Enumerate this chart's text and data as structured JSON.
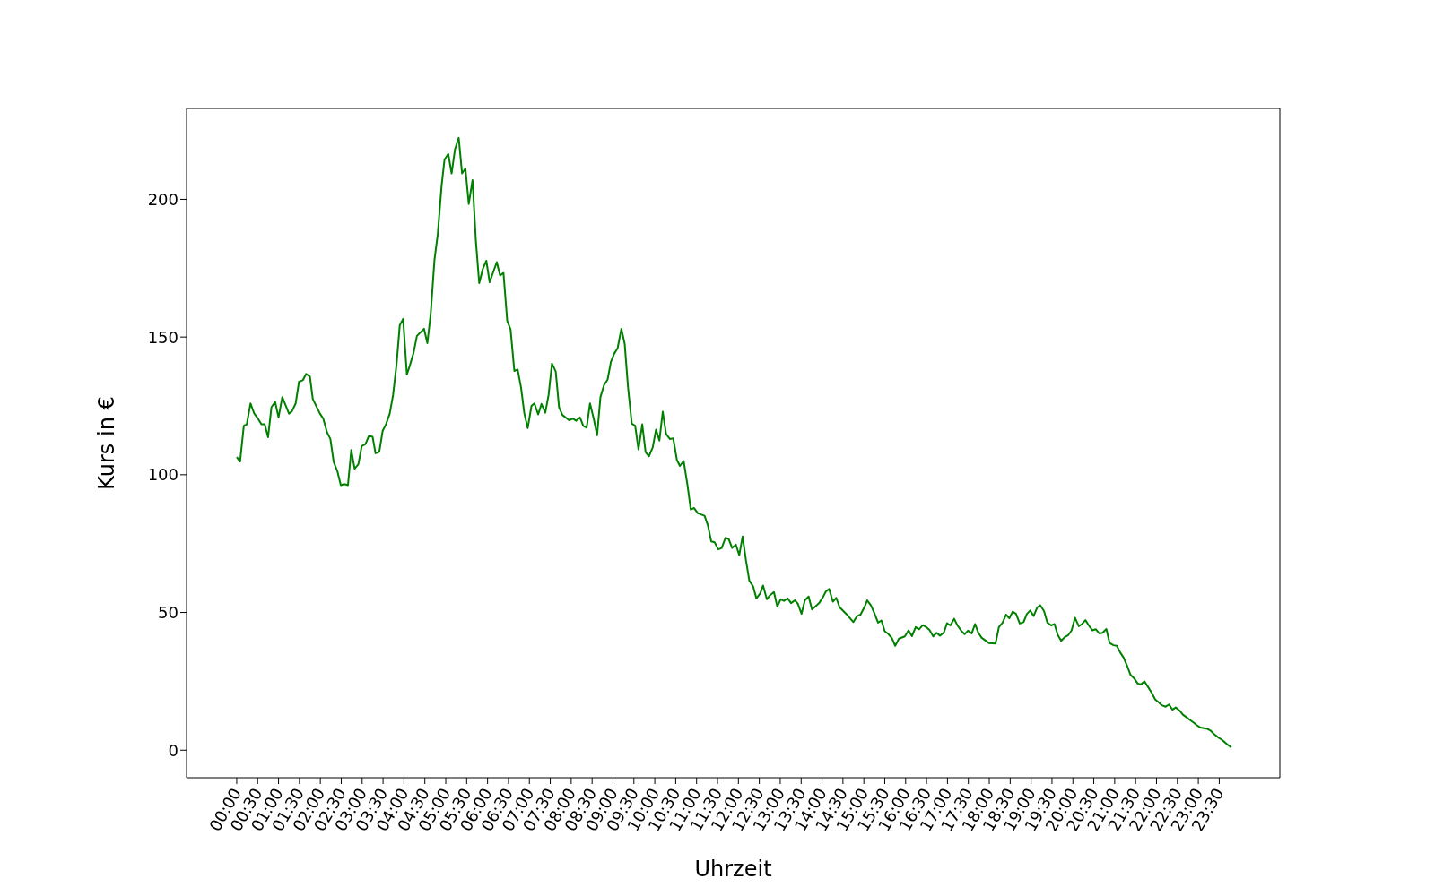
{
  "chart_data": {
    "type": "line",
    "xlabel": "Uhrzeit",
    "ylabel": "Kurs in €",
    "legend": false,
    "grid": false,
    "marker": "none",
    "line_style": "solid",
    "xlim": [
      -1.2,
      24.95
    ],
    "ylim": [
      -10,
      233
    ],
    "xticks": [
      {
        "value": 0,
        "label": "00:00"
      },
      {
        "value": 0.5,
        "label": "00:30"
      },
      {
        "value": 1,
        "label": "01:00"
      },
      {
        "value": 1.5,
        "label": "01:30"
      },
      {
        "value": 2,
        "label": "02:00"
      },
      {
        "value": 2.5,
        "label": "02:30"
      },
      {
        "value": 3,
        "label": "03:00"
      },
      {
        "value": 3.5,
        "label": "03:30"
      },
      {
        "value": 4,
        "label": "04:00"
      },
      {
        "value": 4.5,
        "label": "04:30"
      },
      {
        "value": 5,
        "label": "05:00"
      },
      {
        "value": 5.5,
        "label": "05:30"
      },
      {
        "value": 6,
        "label": "06:00"
      },
      {
        "value": 6.5,
        "label": "06:30"
      },
      {
        "value": 7,
        "label": "07:00"
      },
      {
        "value": 7.5,
        "label": "07:30"
      },
      {
        "value": 8,
        "label": "08:00"
      },
      {
        "value": 8.5,
        "label": "08:30"
      },
      {
        "value": 9,
        "label": "09:00"
      },
      {
        "value": 9.5,
        "label": "09:30"
      },
      {
        "value": 10,
        "label": "10:00"
      },
      {
        "value": 10.5,
        "label": "10:30"
      },
      {
        "value": 11,
        "label": "11:00"
      },
      {
        "value": 11.5,
        "label": "11:30"
      },
      {
        "value": 12,
        "label": "12:00"
      },
      {
        "value": 12.5,
        "label": "12:30"
      },
      {
        "value": 13,
        "label": "13:00"
      },
      {
        "value": 13.5,
        "label": "13:30"
      },
      {
        "value": 14,
        "label": "14:00"
      },
      {
        "value": 14.5,
        "label": "14:30"
      },
      {
        "value": 15,
        "label": "15:00"
      },
      {
        "value": 15.5,
        "label": "15:30"
      },
      {
        "value": 16,
        "label": "16:00"
      },
      {
        "value": 16.5,
        "label": "16:30"
      },
      {
        "value": 17,
        "label": "17:00"
      },
      {
        "value": 17.5,
        "label": "17:30"
      },
      {
        "value": 18,
        "label": "18:00"
      },
      {
        "value": 18.5,
        "label": "18:30"
      },
      {
        "value": 19,
        "label": "19:00"
      },
      {
        "value": 19.5,
        "label": "19:30"
      },
      {
        "value": 20,
        "label": "20:00"
      },
      {
        "value": 20.5,
        "label": "20:30"
      },
      {
        "value": 21,
        "label": "21:00"
      },
      {
        "value": 21.5,
        "label": "21:30"
      },
      {
        "value": 22,
        "label": "22:00"
      },
      {
        "value": 22.5,
        "label": "22:30"
      },
      {
        "value": 23,
        "label": "23:00"
      },
      {
        "value": 23.5,
        "label": "23:30"
      }
    ],
    "yticks": [
      0,
      50,
      100,
      150,
      200
    ],
    "series": [
      {
        "color": "#008000",
        "x": [
          0,
          0.08,
          0.17,
          0.24,
          0.33,
          0.42,
          0.5,
          0.59,
          0.67,
          0.75,
          0.83,
          0.92,
          1.0,
          1.09,
          1.25,
          1.32,
          1.41,
          1.49,
          1.58,
          1.66,
          1.75,
          1.82,
          1.99,
          2.07,
          2.16,
          2.24,
          2.32,
          2.41,
          2.49,
          2.57,
          2.66,
          2.74,
          2.82,
          2.91,
          2.99,
          3.08,
          3.16,
          3.25,
          3.32,
          3.41,
          3.49,
          3.57,
          3.66,
          3.74,
          3.82,
          3.9,
          3.98,
          4.07,
          4.14,
          4.23,
          4.31,
          4.48,
          4.56,
          4.64,
          4.73,
          4.81,
          4.9,
          4.97,
          5.06,
          5.14,
          5.22,
          5.31,
          5.39,
          5.47,
          5.55,
          5.64,
          5.72,
          5.8,
          5.89,
          5.97,
          6.05,
          6.22,
          6.3,
          6.38,
          6.47,
          6.55,
          6.64,
          6.72,
          6.8,
          6.88,
          6.96,
          7.05,
          7.12,
          7.21,
          7.29,
          7.38,
          7.46,
          7.54,
          7.63,
          7.71,
          7.79,
          7.95,
          8.04,
          8.12,
          8.21,
          8.29,
          8.37,
          8.45,
          8.54,
          8.62,
          8.7,
          8.79,
          8.87,
          8.95,
          9.03,
          9.11,
          9.2,
          9.28,
          9.36,
          9.45,
          9.53,
          9.61,
          9.7,
          9.78,
          9.86,
          9.95,
          10.03,
          10.11,
          10.19,
          10.27,
          10.36,
          10.44,
          10.53,
          10.6,
          10.69,
          10.78,
          10.86,
          10.94,
          11.03,
          11.19,
          11.27,
          11.35,
          11.43,
          11.52,
          11.6,
          11.69,
          11.77,
          11.85,
          11.94,
          12.02,
          12.1,
          12.18,
          12.26,
          12.35,
          12.43,
          12.52,
          12.59,
          12.68,
          12.76,
          12.85,
          12.93,
          13.01,
          13.09,
          13.18,
          13.26,
          13.35,
          13.42,
          13.51,
          13.59,
          13.68,
          13.76,
          13.85,
          13.93,
          14.02,
          14.09,
          14.17,
          14.26,
          14.34,
          14.42,
          14.59,
          14.75,
          14.84,
          14.92,
          15.01,
          15.08,
          15.17,
          15.25,
          15.34,
          15.42,
          15.5,
          15.59,
          15.67,
          15.75,
          15.84,
          15.98,
          16.07,
          16.15,
          16.24,
          16.32,
          16.41,
          16.49,
          16.57,
          16.66,
          16.74,
          16.82,
          16.91,
          16.99,
          17.07,
          17.16,
          17.24,
          17.33,
          17.41,
          17.49,
          17.58,
          17.66,
          17.74,
          17.82,
          17.99,
          18.15,
          18.23,
          18.32,
          18.4,
          18.48,
          18.56,
          18.64,
          18.73,
          18.82,
          18.9,
          18.98,
          19.06,
          19.15,
          19.22,
          19.31,
          19.39,
          19.48,
          19.56,
          19.64,
          19.72,
          19.81,
          19.89,
          19.97,
          20.05,
          20.14,
          20.22,
          20.3,
          20.38,
          20.47,
          20.55,
          20.63,
          20.71,
          20.8,
          20.88,
          20.97,
          21.05,
          21.13,
          21.21,
          21.3,
          21.38,
          21.47,
          21.55,
          21.63,
          21.71,
          21.8,
          21.88,
          21.97,
          22.05,
          22.13,
          22.22,
          22.3,
          22.38,
          22.46,
          22.55,
          22.63,
          22.72,
          22.8,
          22.89,
          22.96,
          23.05,
          23.22,
          23.3,
          23.38,
          23.47,
          23.55,
          23.64,
          23.71,
          23.79
        ],
        "values": [
          106.4,
          104.8,
          117.8,
          118.3,
          125.9,
          122.2,
          120.6,
          118.3,
          118.3,
          113.6,
          124.5,
          126.4,
          120.8,
          128.2,
          122.2,
          123.0,
          125.9,
          133.8,
          134.3,
          136.6,
          135.7,
          127.5,
          122.2,
          120.4,
          115.4,
          113.0,
          104.6,
          101.1,
          96.2,
          96.6,
          96.2,
          109.0,
          102.2,
          103.8,
          110.4,
          111.1,
          114.1,
          113.8,
          107.8,
          108.3,
          115.9,
          118.3,
          122.2,
          129.0,
          139.6,
          154.3,
          156.6,
          136.4,
          139.6,
          144.3,
          150.4,
          153.0,
          147.8,
          158.5,
          178.0,
          187.5,
          204.9,
          214.4,
          216.5,
          209.4,
          218.1,
          222.3,
          209.4,
          211.2,
          198.3,
          207.0,
          184.9,
          169.6,
          174.9,
          177.7,
          169.9,
          177.2,
          172.3,
          173.3,
          155.9,
          152.8,
          137.7,
          138.2,
          131.7,
          122.2,
          116.9,
          125.0,
          125.9,
          121.9,
          125.7,
          122.5,
          129.0,
          140.4,
          137.5,
          124.5,
          121.7,
          119.8,
          120.4,
          119.6,
          120.8,
          117.7,
          117.1,
          125.9,
          120.3,
          114.3,
          128.2,
          132.7,
          134.5,
          141.0,
          144.0,
          145.9,
          153.0,
          147.5,
          131.7,
          118.5,
          117.8,
          109.2,
          118.3,
          108.2,
          106.7,
          109.9,
          116.4,
          112.4,
          122.9,
          114.8,
          113.0,
          113.2,
          105.3,
          103.2,
          105.0,
          96.4,
          87.4,
          87.9,
          86.0,
          85.1,
          81.6,
          75.8,
          75.5,
          72.9,
          73.4,
          77.1,
          76.6,
          73.4,
          74.6,
          70.8,
          77.6,
          69.0,
          61.6,
          59.5,
          55.1,
          56.9,
          59.8,
          54.8,
          56.3,
          57.4,
          52.1,
          54.8,
          54.2,
          55.1,
          53.4,
          54.4,
          53.2,
          49.5,
          54.4,
          55.8,
          51.1,
          52.3,
          53.4,
          55.5,
          57.6,
          58.5,
          53.9,
          55.3,
          51.9,
          49.3,
          46.5,
          48.7,
          49.2,
          51.8,
          54.4,
          52.6,
          49.8,
          46.3,
          47.1,
          43.2,
          42.1,
          40.7,
          37.9,
          40.5,
          41.3,
          43.5,
          41.4,
          44.7,
          43.9,
          45.4,
          44.7,
          43.7,
          41.3,
          42.6,
          41.6,
          42.6,
          46.1,
          45.3,
          47.7,
          45.3,
          43.4,
          42.1,
          43.4,
          42.4,
          45.8,
          42.6,
          40.8,
          38.9,
          38.7,
          44.7,
          46.3,
          49.2,
          47.9,
          50.3,
          49.5,
          46.0,
          46.5,
          49.5,
          50.7,
          48.7,
          51.9,
          52.6,
          50.5,
          46.3,
          45.3,
          45.8,
          41.8,
          39.7,
          41.1,
          41.8,
          43.5,
          48.1,
          45.0,
          45.8,
          47.2,
          45.3,
          43.5,
          43.9,
          42.4,
          42.6,
          44.0,
          38.9,
          38.1,
          37.9,
          35.5,
          33.7,
          30.5,
          27.3,
          26.0,
          24.2,
          23.9,
          25.0,
          22.9,
          21.0,
          18.4,
          17.4,
          16.3,
          15.8,
          16.6,
          14.7,
          15.5,
          14.4,
          12.9,
          11.9,
          11.0,
          10.0,
          9.1,
          8.2,
          7.7,
          7.0,
          5.8,
          4.7,
          3.9,
          2.8,
          1.9,
          1.0
        ]
      }
    ]
  }
}
